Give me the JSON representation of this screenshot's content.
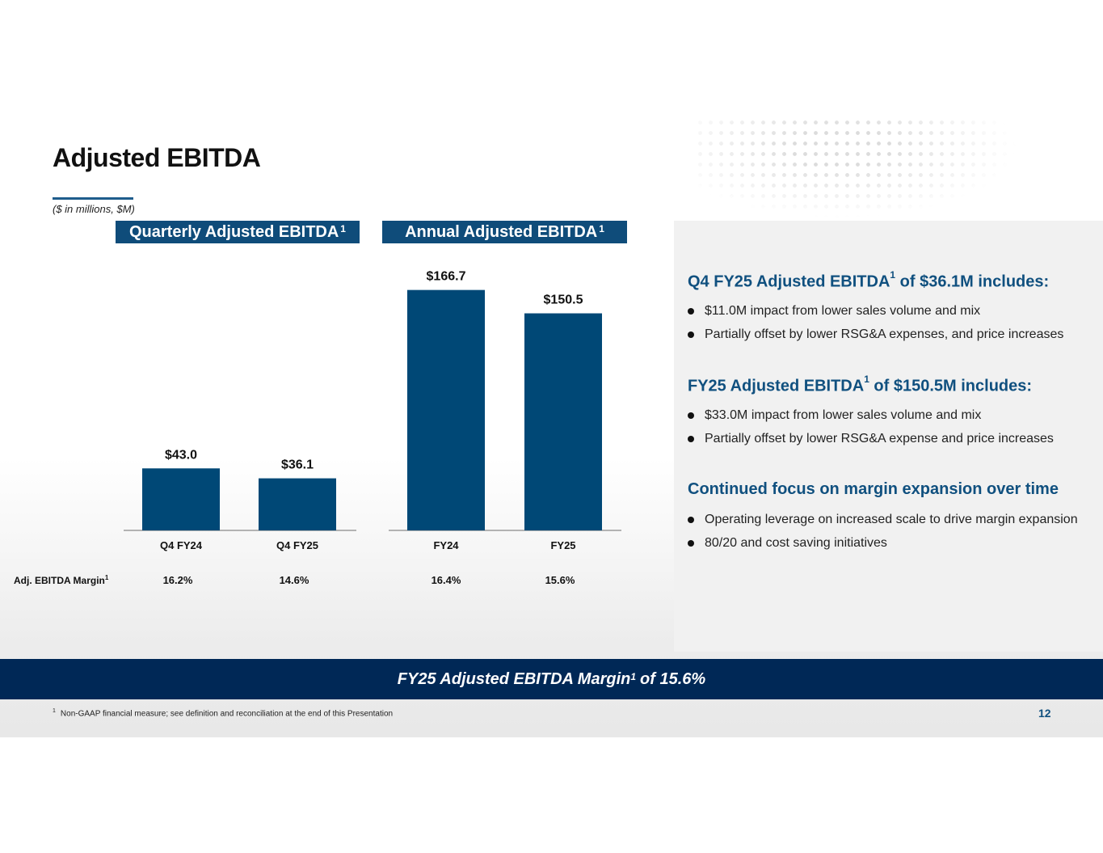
{
  "slide": {
    "title": "Adjusted EBITDA",
    "subtitle": "($ in millions, $M)",
    "page_number": "12",
    "footnote_marker": "1",
    "footnote": "Non-GAAP financial measure; see definition and reconciliation at the end of this Presentation",
    "banner": {
      "text_a": "FY25 Adjusted EBITDA Margin",
      "sup": "1",
      "text_b": "of 15.6%"
    }
  },
  "chart_headers": {
    "quarterly": {
      "label": "Quarterly Adjusted EBITDA",
      "sup": "1"
    },
    "annual": {
      "label": "Annual Adjusted EBITDA",
      "sup": "1"
    }
  },
  "colors": {
    "bar": "#004876",
    "header": "#0f4c7a",
    "banner": "#002856",
    "accent": "#10507f"
  },
  "chart_data": [
    {
      "type": "bar",
      "title": "Quarterly Adjusted EBITDA",
      "categories": [
        "Q4 FY24",
        "Q4 FY25"
      ],
      "values": [
        43.0,
        36.1
      ],
      "value_labels": [
        "$43.0",
        "$36.1"
      ],
      "margins": [
        "16.2%",
        "14.6%"
      ],
      "ylim": [
        0,
        185
      ],
      "grid": false
    },
    {
      "type": "bar",
      "title": "Annual Adjusted EBITDA",
      "categories": [
        "FY24",
        "FY25"
      ],
      "values": [
        166.7,
        150.5
      ],
      "value_labels": [
        "$166.7",
        "$150.5"
      ],
      "margins": [
        "16.4%",
        "15.6%"
      ],
      "ylim": [
        0,
        185
      ],
      "grid": false
    }
  ],
  "margin_row_label": "Adj. EBITDA Margin",
  "margin_row_sup": "1",
  "right_panel": {
    "sections": [
      {
        "heading_a": "Q4 FY25 Adjusted EBITDA",
        "sup": "1",
        "heading_b": "of $36.1M includes:",
        "bullets": [
          "$11.0M impact from lower sales volume and mix",
          "Partially offset by lower RSG&A expenses, and price increases"
        ]
      },
      {
        "heading_a": "FY25 Adjusted EBITDA",
        "sup": "1",
        "heading_b": "of $150.5M includes:",
        "bullets": [
          "$33.0M impact from lower sales volume and mix",
          "Partially offset by lower RSG&A expense and price increases"
        ]
      },
      {
        "heading_a": "Continued focus on margin expansion over time",
        "sup": "",
        "heading_b": "",
        "bullets": [
          "Operating leverage on increased scale to drive margin expansion",
          "80/20 and cost saving initiatives"
        ]
      }
    ]
  }
}
